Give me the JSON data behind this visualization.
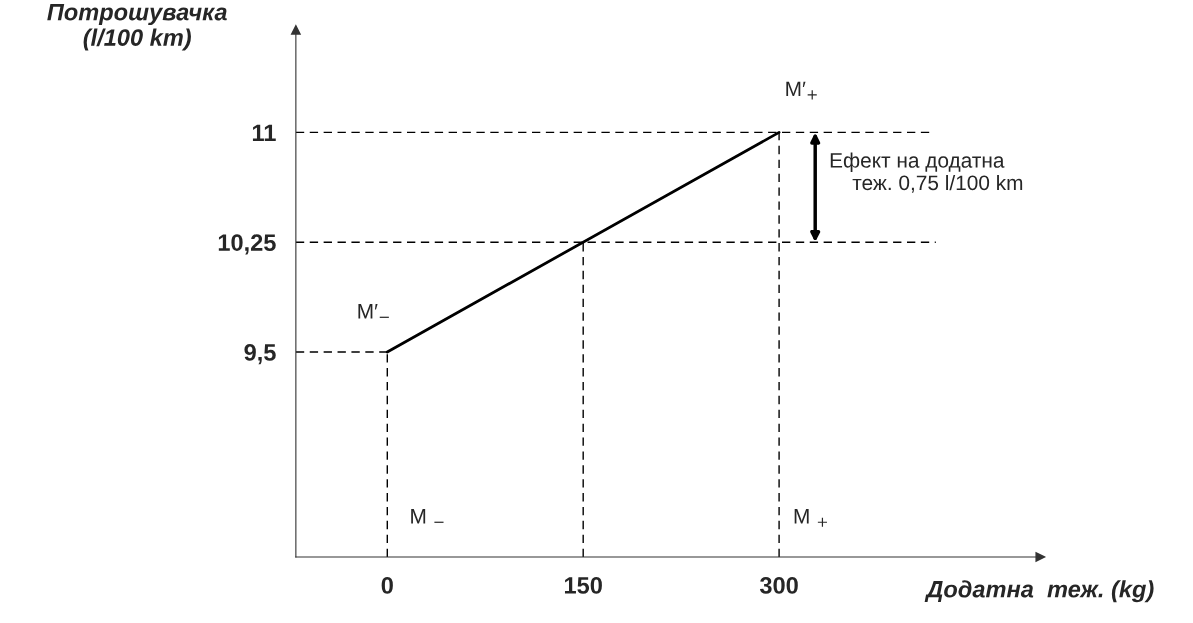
{
  "chart_data": {
    "type": "line",
    "xlabel": "Додатна  теж. (kg)",
    "ylabel": "Потрошувачка\n(l/100 km)",
    "xlim": [
      -70,
      500
    ],
    "ylim": [
      8.1,
      11.7
    ],
    "xticks": [
      0,
      150,
      300
    ],
    "yticks": [
      {
        "value": 9.5,
        "label": "9,5"
      },
      {
        "value": 10.25,
        "label": "10,25"
      },
      11
    ],
    "series": [
      {
        "color": "#000000",
        "line_style": "solid",
        "x": [
          0,
          300
        ],
        "values": [
          9.5,
          11
        ]
      },
      {
        "color": "#000000",
        "line_style": "dashed",
        "x": [
          -70,
          415
        ],
        "values": [
          11,
          11
        ]
      },
      {
        "color": "#000000",
        "line_style": "dashed",
        "x": [
          -70,
          420
        ],
        "values": [
          10.25,
          10.25
        ]
      },
      {
        "color": "#000000",
        "line_style": "dashed",
        "x": [
          -70,
          0
        ],
        "values": [
          9.5,
          9.5
        ]
      },
      {
        "color": "#000000",
        "line_style": "dashed",
        "x": [
          0,
          0
        ],
        "values": [
          8.1,
          9.5
        ]
      },
      {
        "color": "#000000",
        "line_style": "dashed",
        "x": [
          150,
          150
        ],
        "values": [
          8.1,
          10.25
        ]
      },
      {
        "color": "#000000",
        "line_style": "dashed",
        "x": [
          300,
          300
        ],
        "values": [
          8.1,
          11
        ]
      }
    ],
    "annotations": [
      "M′$_{−}$",
      "M′$_{+}$",
      "M $_{−}$",
      "M $_{+}$",
      {
        "text": "Ефект на додатна\n    теж. 0,75 l/100 km",
        "x": 300,
        "y": 11
      }
    ]
  }
}
